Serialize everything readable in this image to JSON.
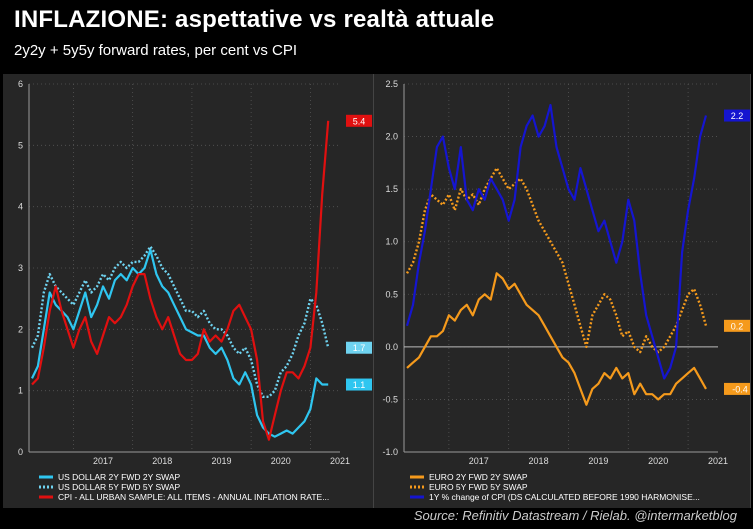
{
  "header": {
    "title": "INFLAZIONE: aspettative vs realtà attuale",
    "subtitle": "2y2y + 5y5y forward rates, per cent vs CPI"
  },
  "footer": {
    "source": "Source: Refinitiv Datastream / Rielab. @intermarketblog"
  },
  "colors": {
    "background": "#000000",
    "panel": "#262626",
    "us_2y": "#2fc6f0",
    "us_5y": "#6fd3f0",
    "cpi_us": "#e01010",
    "euro": "#f59a1c",
    "cpi_euro": "#1515d0"
  },
  "chart_data": [
    {
      "type": "line",
      "ylim": [
        0,
        6
      ],
      "yticks": [
        0,
        1,
        2,
        3,
        4,
        5,
        6
      ],
      "xlim": [
        2016.25,
        2021.5
      ],
      "xticks": [
        2017,
        2018,
        2019,
        2020,
        2021
      ],
      "xtick_labels": [
        "2017",
        "2018",
        "2019",
        "2020",
        "2021"
      ],
      "grid": true,
      "legend": "bottom",
      "series": [
        {
          "name": "US DOLLAR 2Y FWD 2Y SWAP",
          "style": "solid",
          "color": "#2fc6f0",
          "end_label": "1.1",
          "x": [
            2016.3,
            2016.4,
            2016.5,
            2016.6,
            2016.7,
            2016.8,
            2016.9,
            2017.0,
            2017.1,
            2017.2,
            2017.3,
            2017.4,
            2017.5,
            2017.6,
            2017.7,
            2017.8,
            2017.9,
            2018.0,
            2018.1,
            2018.2,
            2018.3,
            2018.4,
            2018.5,
            2018.6,
            2018.7,
            2018.8,
            2018.9,
            2019.0,
            2019.1,
            2019.2,
            2019.3,
            2019.4,
            2019.5,
            2019.6,
            2019.7,
            2019.8,
            2019.9,
            2020.0,
            2020.1,
            2020.2,
            2020.3,
            2020.4,
            2020.5,
            2020.6,
            2020.7,
            2020.8,
            2020.9,
            2021.0,
            2021.1,
            2021.2,
            2021.3
          ],
          "y": [
            1.2,
            1.4,
            2.0,
            2.6,
            2.4,
            2.3,
            2.2,
            2.0,
            2.3,
            2.6,
            2.2,
            2.4,
            2.7,
            2.5,
            2.8,
            2.9,
            2.8,
            3.0,
            2.9,
            3.0,
            3.3,
            2.9,
            2.7,
            2.6,
            2.4,
            2.2,
            2.0,
            1.95,
            1.9,
            1.9,
            1.7,
            1.6,
            1.7,
            1.5,
            1.2,
            1.1,
            1.3,
            1.1,
            0.6,
            0.4,
            0.3,
            0.25,
            0.3,
            0.35,
            0.3,
            0.4,
            0.5,
            0.7,
            1.2,
            1.1,
            1.1
          ]
        },
        {
          "name": "US DOLLAR 5Y FWD 5Y SWAP",
          "style": "dotted",
          "color": "#6fd3f0",
          "end_label": "1.7",
          "x": [
            2016.3,
            2016.4,
            2016.5,
            2016.6,
            2016.7,
            2016.8,
            2016.9,
            2017.0,
            2017.1,
            2017.2,
            2017.3,
            2017.4,
            2017.5,
            2017.6,
            2017.7,
            2017.8,
            2017.9,
            2018.0,
            2018.1,
            2018.2,
            2018.3,
            2018.4,
            2018.5,
            2018.6,
            2018.7,
            2018.8,
            2018.9,
            2019.0,
            2019.1,
            2019.2,
            2019.3,
            2019.4,
            2019.5,
            2019.6,
            2019.7,
            2019.8,
            2019.9,
            2020.0,
            2020.1,
            2020.2,
            2020.3,
            2020.4,
            2020.5,
            2020.6,
            2020.7,
            2020.8,
            2020.9,
            2021.0,
            2021.1,
            2021.2,
            2021.3
          ],
          "y": [
            1.7,
            1.9,
            2.6,
            2.9,
            2.7,
            2.6,
            2.5,
            2.4,
            2.6,
            2.8,
            2.6,
            2.7,
            2.9,
            2.8,
            3.0,
            3.1,
            3.0,
            3.1,
            3.1,
            3.2,
            3.35,
            3.2,
            3.0,
            2.9,
            2.7,
            2.5,
            2.3,
            2.3,
            2.2,
            2.3,
            2.1,
            2.0,
            2.0,
            1.9,
            1.7,
            1.6,
            1.7,
            1.5,
            1.1,
            0.9,
            0.9,
            1.0,
            1.3,
            1.4,
            1.6,
            1.9,
            2.1,
            2.5,
            2.4,
            2.1,
            1.7
          ]
        },
        {
          "name": "CPI - ALL URBAN SAMPLE: ALL ITEMS - ANNUAL INFLATION RATE...",
          "style": "solid",
          "color": "#e01010",
          "end_label": "5.4",
          "x": [
            2016.3,
            2016.4,
            2016.5,
            2016.6,
            2016.7,
            2016.8,
            2016.9,
            2017.0,
            2017.1,
            2017.2,
            2017.3,
            2017.4,
            2017.5,
            2017.6,
            2017.7,
            2017.8,
            2017.9,
            2018.0,
            2018.1,
            2018.2,
            2018.3,
            2018.4,
            2018.5,
            2018.6,
            2018.7,
            2018.8,
            2018.9,
            2019.0,
            2019.1,
            2019.2,
            2019.3,
            2019.4,
            2019.5,
            2019.6,
            2019.7,
            2019.8,
            2019.9,
            2020.0,
            2020.1,
            2020.2,
            2020.3,
            2020.4,
            2020.5,
            2020.6,
            2020.7,
            2020.8,
            2020.9,
            2021.0,
            2021.1,
            2021.2,
            2021.3
          ],
          "y": [
            1.1,
            1.2,
            1.7,
            2.3,
            2.7,
            2.3,
            2.0,
            1.7,
            2.0,
            2.2,
            1.8,
            1.6,
            1.9,
            2.2,
            2.1,
            2.2,
            2.4,
            2.7,
            2.9,
            2.9,
            2.5,
            2.2,
            2.0,
            2.2,
            1.9,
            1.6,
            1.5,
            1.5,
            1.6,
            2.0,
            1.8,
            1.9,
            1.8,
            2.0,
            2.3,
            2.4,
            2.2,
            2.0,
            1.5,
            0.5,
            0.2,
            0.6,
            1.0,
            1.3,
            1.3,
            1.2,
            1.4,
            1.7,
            2.6,
            4.2,
            5.4
          ]
        }
      ]
    },
    {
      "type": "line",
      "ylim": [
        -1.0,
        2.5
      ],
      "yticks": [
        -1.0,
        -0.5,
        0.0,
        0.5,
        1.0,
        1.5,
        2.0,
        2.5
      ],
      "ytick_labels": [
        "-1.0",
        "-0.5",
        "0.0",
        "0.5",
        "1.0",
        "1.5",
        "2.0",
        "2.5"
      ],
      "xlim": [
        2016.25,
        2021.5
      ],
      "xticks": [
        2017,
        2018,
        2019,
        2020,
        2021
      ],
      "xtick_labels": [
        "2017",
        "2018",
        "2019",
        "2020",
        "2021"
      ],
      "grid": true,
      "zero_line": true,
      "legend": "bottom",
      "series": [
        {
          "name": "EURO 2Y FWD 2Y SWAP",
          "style": "solid",
          "color": "#f59a1c",
          "end_label": "-0.4",
          "x": [
            2016.3,
            2016.4,
            2016.5,
            2016.6,
            2016.7,
            2016.8,
            2016.9,
            2017.0,
            2017.1,
            2017.2,
            2017.3,
            2017.4,
            2017.5,
            2017.6,
            2017.7,
            2017.8,
            2017.9,
            2018.0,
            2018.1,
            2018.2,
            2018.3,
            2018.4,
            2018.5,
            2018.6,
            2018.7,
            2018.8,
            2018.9,
            2019.0,
            2019.1,
            2019.2,
            2019.3,
            2019.4,
            2019.5,
            2019.6,
            2019.7,
            2019.8,
            2019.9,
            2020.0,
            2020.1,
            2020.2,
            2020.3,
            2020.4,
            2020.5,
            2020.6,
            2020.7,
            2020.8,
            2020.9,
            2021.0,
            2021.1,
            2021.2,
            2021.3
          ],
          "y": [
            -0.2,
            -0.15,
            -0.1,
            0.0,
            0.1,
            0.1,
            0.15,
            0.3,
            0.25,
            0.35,
            0.4,
            0.3,
            0.45,
            0.5,
            0.45,
            0.7,
            0.65,
            0.55,
            0.6,
            0.5,
            0.4,
            0.35,
            0.3,
            0.2,
            0.1,
            0.0,
            -0.1,
            -0.15,
            -0.25,
            -0.4,
            -0.55,
            -0.4,
            -0.35,
            -0.25,
            -0.3,
            -0.2,
            -0.3,
            -0.25,
            -0.45,
            -0.35,
            -0.45,
            -0.45,
            -0.5,
            -0.45,
            -0.45,
            -0.35,
            -0.3,
            -0.25,
            -0.2,
            -0.3,
            -0.4
          ]
        },
        {
          "name": "EURO 5Y FWD 5Y SWAP",
          "style": "dotted",
          "color": "#f59a1c",
          "end_label": "0.2",
          "x": [
            2016.3,
            2016.4,
            2016.5,
            2016.6,
            2016.7,
            2016.8,
            2016.9,
            2017.0,
            2017.1,
            2017.2,
            2017.3,
            2017.4,
            2017.5,
            2017.6,
            2017.7,
            2017.8,
            2017.9,
            2018.0,
            2018.1,
            2018.2,
            2018.3,
            2018.4,
            2018.5,
            2018.6,
            2018.7,
            2018.8,
            2018.9,
            2019.0,
            2019.1,
            2019.2,
            2019.3,
            2019.4,
            2019.5,
            2019.6,
            2019.7,
            2019.8,
            2019.9,
            2020.0,
            2020.1,
            2020.2,
            2020.3,
            2020.4,
            2020.5,
            2020.6,
            2020.7,
            2020.8,
            2020.9,
            2021.0,
            2021.1,
            2021.2,
            2021.3
          ],
          "y": [
            0.7,
            0.8,
            1.0,
            1.3,
            1.45,
            1.4,
            1.35,
            1.45,
            1.3,
            1.5,
            1.4,
            1.45,
            1.35,
            1.5,
            1.6,
            1.7,
            1.6,
            1.5,
            1.55,
            1.6,
            1.5,
            1.35,
            1.2,
            1.1,
            1.0,
            0.9,
            0.8,
            0.6,
            0.4,
            0.2,
            0.0,
            0.3,
            0.4,
            0.5,
            0.45,
            0.3,
            0.1,
            0.15,
            0.0,
            -0.05,
            0.1,
            0.0,
            -0.05,
            0.0,
            0.1,
            0.2,
            0.35,
            0.5,
            0.55,
            0.4,
            0.2
          ]
        },
        {
          "name": "1Y % change of CPI (DS CALCULATED BEFORE 1990 HARMONISE...",
          "style": "solid",
          "color": "#1515d0",
          "end_label": "2.2",
          "x": [
            2016.3,
            2016.4,
            2016.5,
            2016.6,
            2016.7,
            2016.8,
            2016.9,
            2017.0,
            2017.1,
            2017.2,
            2017.3,
            2017.4,
            2017.5,
            2017.6,
            2017.7,
            2017.8,
            2017.9,
            2018.0,
            2018.1,
            2018.2,
            2018.3,
            2018.4,
            2018.5,
            2018.6,
            2018.7,
            2018.8,
            2018.9,
            2019.0,
            2019.1,
            2019.2,
            2019.3,
            2019.4,
            2019.5,
            2019.6,
            2019.7,
            2019.8,
            2019.9,
            2020.0,
            2020.1,
            2020.2,
            2020.3,
            2020.4,
            2020.5,
            2020.6,
            2020.7,
            2020.8,
            2020.9,
            2021.0,
            2021.1,
            2021.2,
            2021.3
          ],
          "y": [
            0.2,
            0.4,
            0.8,
            1.1,
            1.5,
            1.9,
            2.0,
            1.7,
            1.5,
            1.9,
            1.4,
            1.3,
            1.5,
            1.4,
            1.6,
            1.5,
            1.4,
            1.2,
            1.4,
            1.9,
            2.1,
            2.2,
            2.0,
            2.1,
            2.3,
            1.9,
            1.7,
            1.5,
            1.4,
            1.7,
            1.5,
            1.3,
            1.1,
            1.2,
            1.0,
            0.8,
            1.0,
            1.4,
            1.2,
            0.7,
            0.3,
            0.1,
            -0.1,
            -0.3,
            -0.2,
            0.0,
            0.9,
            1.3,
            1.6,
            2.0,
            2.2
          ]
        }
      ]
    }
  ]
}
